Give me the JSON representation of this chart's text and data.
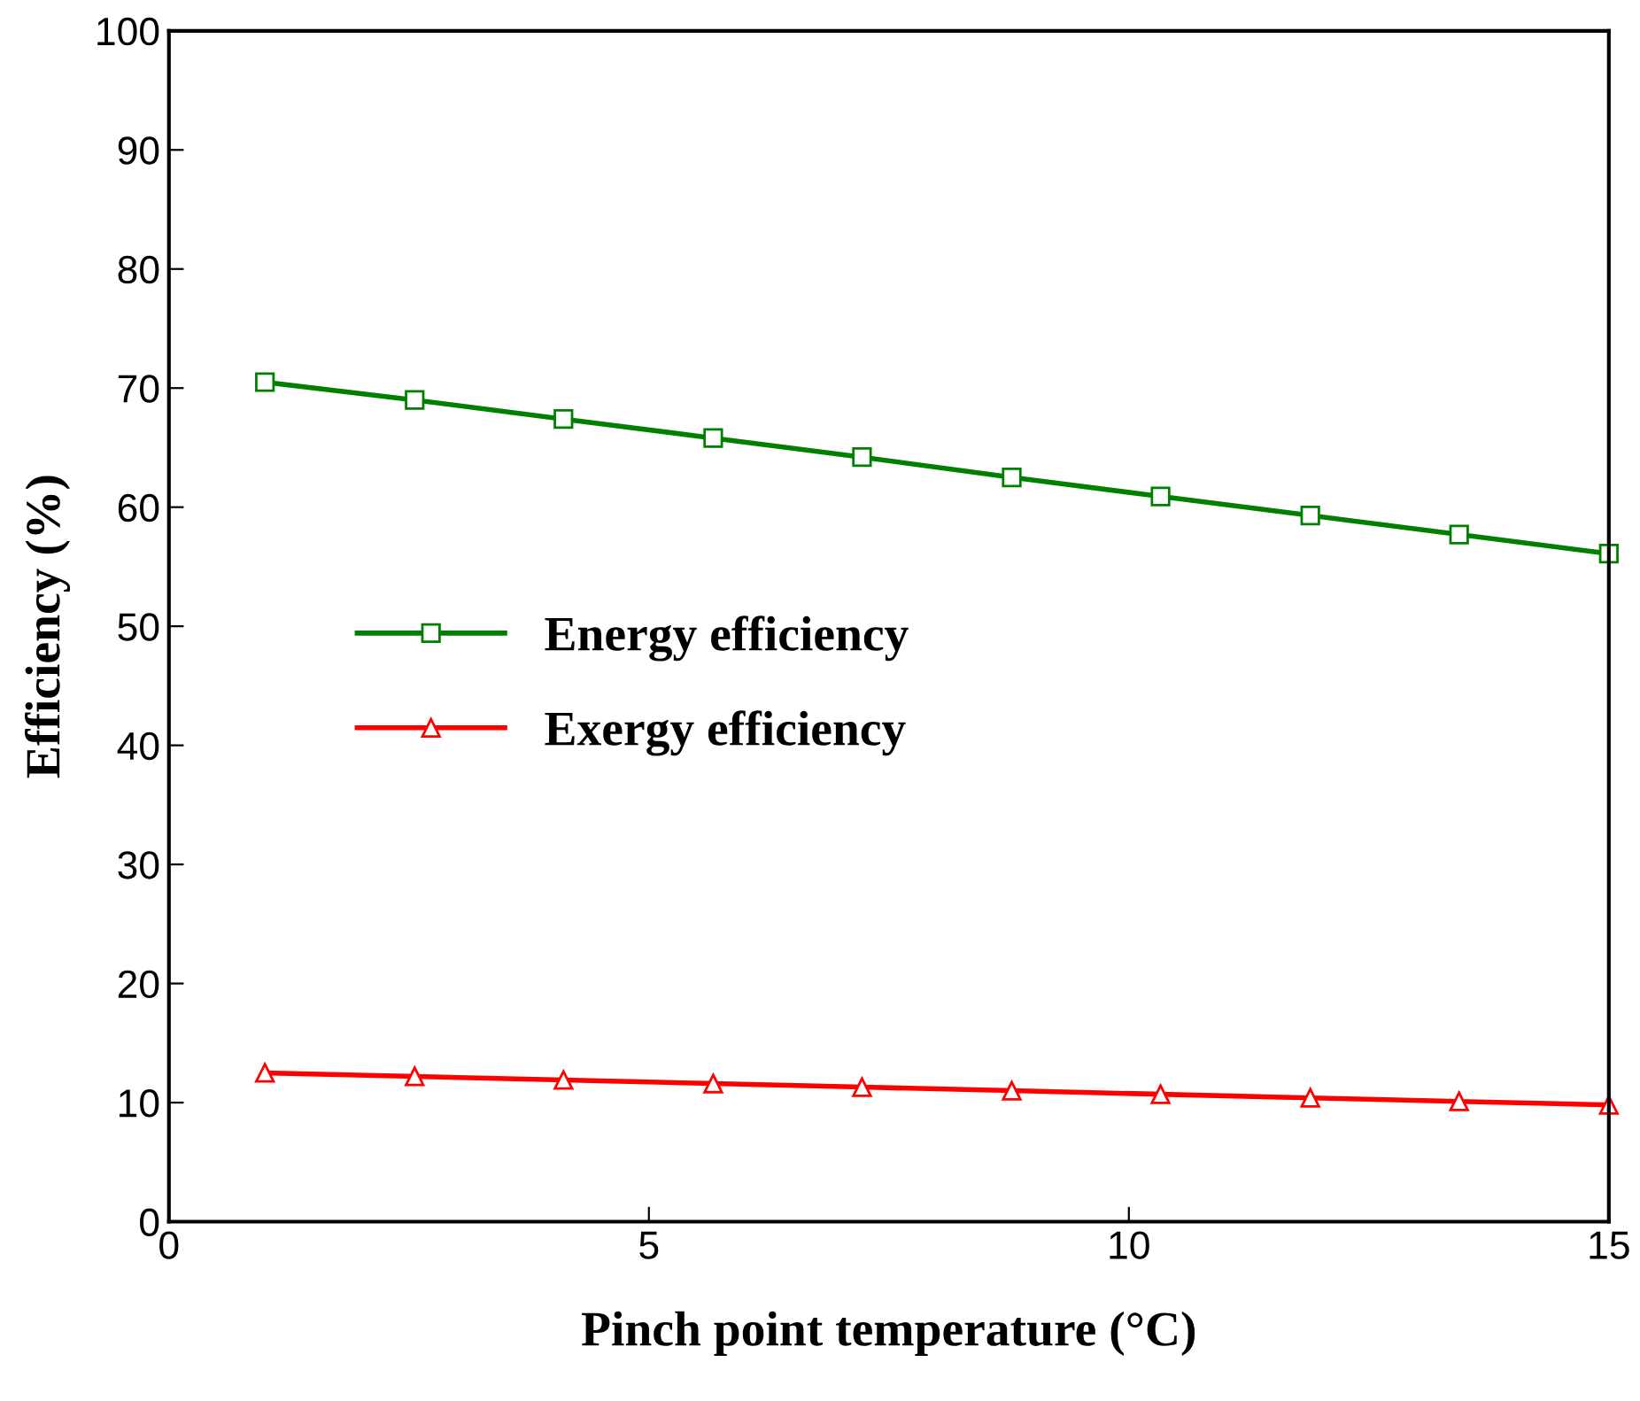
{
  "chart_data": {
    "type": "line",
    "xlabel": "Pinch point temperature (°C)",
    "ylabel": "Efficiency (%)",
    "x": [
      1,
      2.56,
      4.11,
      5.67,
      7.22,
      8.78,
      10.33,
      11.89,
      13.44,
      15
    ],
    "series": [
      {
        "name": "Energy efficiency",
        "color": "#008000",
        "marker": "square",
        "values": [
          70.5,
          69.0,
          67.4,
          65.8,
          64.2,
          62.5,
          60.9,
          59.3,
          57.7,
          56.1
        ]
      },
      {
        "name": "Exergy efficiency",
        "color": "#ff0000",
        "marker": "triangle",
        "values": [
          12.5,
          12.2,
          11.9,
          11.6,
          11.3,
          11.0,
          10.7,
          10.4,
          10.1,
          9.8
        ]
      }
    ],
    "xlim": [
      0,
      15
    ],
    "xticks": [
      0,
      5,
      10,
      15
    ],
    "ylim": [
      0,
      100
    ],
    "yticks": [
      0,
      10,
      20,
      30,
      40,
      50,
      60,
      70,
      80,
      90,
      100
    ],
    "legend": "left",
    "grid": false,
    "line_style": "solid"
  }
}
